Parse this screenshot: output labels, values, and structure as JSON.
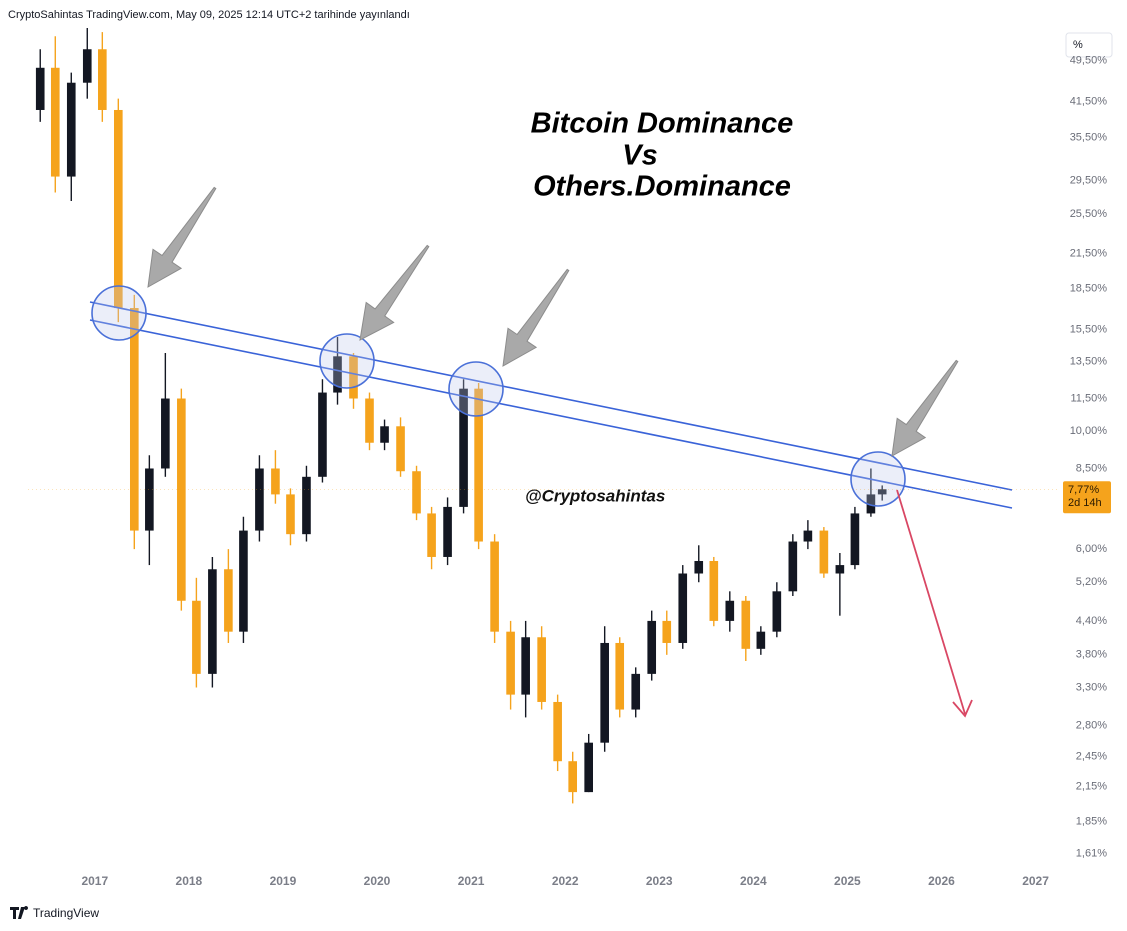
{
  "chart_data": {
    "type": "candlestick",
    "header": "CryptoSahintas TradingView.com, May 09, 2025 12:14 UTC+2 tarihinde yayınlandı",
    "title_lines": [
      "Bitcoin Dominance",
      "Vs",
      "Others.Dominance"
    ],
    "watermark": "@Cryptosahintas",
    "footer": "TradingView",
    "axis_unit": "%",
    "log_scale": true,
    "up_color": "#131722",
    "down_color": "#f5a31c",
    "x": [
      2016.42,
      2016.58,
      2016.75,
      2016.92,
      2017.08,
      2017.25,
      2017.42,
      2017.58,
      2017.75,
      2017.92,
      2018.08,
      2018.25,
      2018.42,
      2018.58,
      2018.75,
      2018.92,
      2019.08,
      2019.25,
      2019.42,
      2019.58,
      2019.75,
      2019.92,
      2020.08,
      2020.25,
      2020.42,
      2020.58,
      2020.75,
      2020.92,
      2021.08,
      2021.25,
      2021.42,
      2021.58,
      2021.75,
      2021.92,
      2022.08,
      2022.25,
      2022.42,
      2022.58,
      2022.75,
      2022.92,
      2023.08,
      2023.25,
      2023.42,
      2023.58,
      2023.75,
      2023.92,
      2024.08,
      2024.25,
      2024.42,
      2024.58,
      2024.75,
      2024.92,
      2025.08,
      2025.25,
      2025.37
    ],
    "open": [
      40,
      48,
      30,
      45,
      52,
      40,
      17,
      6.5,
      8.5,
      11.5,
      4.8,
      3.5,
      5.5,
      4.2,
      6.5,
      8.5,
      7.6,
      6.4,
      8.2,
      11.8,
      13.8,
      11.5,
      9.5,
      10.2,
      8.4,
      7,
      5.8,
      7.2,
      12,
      6.2,
      4.2,
      3.2,
      4.1,
      3.1,
      2.4,
      2.1,
      2.6,
      4,
      3,
      3.5,
      4.4,
      4,
      5.4,
      5.7,
      4.4,
      4.8,
      3.9,
      4.2,
      5,
      6.2,
      6.5,
      5.4,
      5.6,
      7,
      7.6
    ],
    "high": [
      52,
      55,
      47,
      58,
      56,
      42,
      18,
      9,
      14,
      12,
      5.3,
      5.8,
      6,
      6.9,
      9,
      9.2,
      7.8,
      8.6,
      12.5,
      15,
      14,
      11.8,
      10.5,
      10.6,
      8.6,
      7.2,
      7.5,
      12.5,
      12.3,
      6.4,
      4.4,
      4.4,
      4.3,
      3.2,
      2.5,
      2.7,
      4.3,
      4.1,
      3.6,
      4.6,
      4.6,
      5.6,
      6.1,
      5.8,
      5,
      4.9,
      4.3,
      5.2,
      6.4,
      6.8,
      6.6,
      5.9,
      7.2,
      8.5,
      7.9
    ],
    "low": [
      38,
      28,
      27,
      42,
      38,
      16,
      6,
      5.6,
      8.2,
      4.6,
      3.3,
      3.3,
      4,
      4,
      6.2,
      7.3,
      6.1,
      6.2,
      8,
      11.2,
      11,
      9.2,
      9.2,
      8.2,
      6.8,
      5.5,
      5.6,
      7,
      6,
      4,
      3,
      2.9,
      3,
      2.3,
      2,
      2.1,
      2.5,
      2.9,
      2.9,
      3.4,
      3.8,
      3.9,
      5.2,
      4.3,
      4.2,
      3.7,
      3.8,
      4.1,
      4.9,
      6,
      5.3,
      4.5,
      5.5,
      6.9,
      7.4
    ],
    "close": [
      48,
      30,
      45,
      52,
      40,
      17,
      6.5,
      8.5,
      11.5,
      4.8,
      3.5,
      5.5,
      4.2,
      6.5,
      8.5,
      7.6,
      6.4,
      8.2,
      11.8,
      13.8,
      11.5,
      9.5,
      10.2,
      8.4,
      7,
      5.8,
      7.2,
      12,
      6.2,
      4.2,
      3.2,
      4.1,
      3.1,
      2.4,
      2.1,
      2.6,
      4,
      3,
      3.5,
      4.4,
      4,
      5.4,
      5.7,
      4.4,
      4.8,
      3.9,
      4.2,
      5,
      6.2,
      6.5,
      5.4,
      5.6,
      7,
      7.6,
      7.77
    ],
    "xlim": [
      2016.29,
      2027.26
    ],
    "xticks": [
      2017,
      2018,
      2019,
      2020,
      2021,
      2022,
      2023,
      2024,
      2025,
      2026,
      2027
    ],
    "ylim": [
      1.5,
      57
    ],
    "yticks": [
      {
        "value": 49.5,
        "label": "49,50%"
      },
      {
        "value": 41.5,
        "label": "41,50%"
      },
      {
        "value": 35.5,
        "label": "35,50%"
      },
      {
        "value": 29.5,
        "label": "29,50%"
      },
      {
        "value": 25.5,
        "label": "25,50%"
      },
      {
        "value": 21.5,
        "label": "21,50%"
      },
      {
        "value": 18.5,
        "label": "18,50%"
      },
      {
        "value": 15.5,
        "label": "15,50%"
      },
      {
        "value": 13.5,
        "label": "13,50%"
      },
      {
        "value": 11.5,
        "label": "11,50%"
      },
      {
        "value": 10,
        "label": "10,00%"
      },
      {
        "value": 8.5,
        "label": "8,50%"
      },
      {
        "value": 6,
        "label": "6,00%"
      },
      {
        "value": 5.2,
        "label": "5,20%"
      },
      {
        "value": 4.4,
        "label": "4,40%"
      },
      {
        "value": 3.8,
        "label": "3,80%"
      },
      {
        "value": 3.3,
        "label": "3,30%"
      },
      {
        "value": 2.8,
        "label": "2,80%"
      },
      {
        "value": 2.45,
        "label": "2,45%"
      },
      {
        "value": 2.15,
        "label": "2,15%"
      },
      {
        "value": 1.85,
        "label": "1,85%"
      },
      {
        "value": 1.61,
        "label": "1,61%"
      }
    ],
    "last_price": {
      "value": 7.77,
      "label": "7,77%"
    },
    "countdown": "2d 14h"
  }
}
